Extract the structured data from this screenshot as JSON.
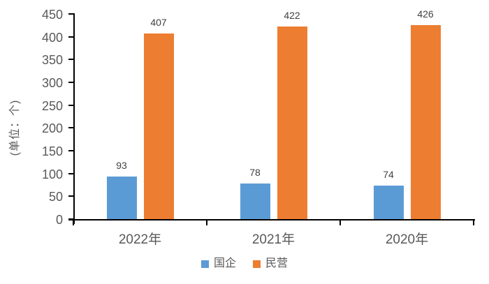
{
  "chart_data": {
    "type": "bar",
    "title": "",
    "categories": [
      "2022年",
      "2021年",
      "2020年"
    ],
    "series": [
      {
        "name": "国企",
        "color": "#5B9BD5",
        "values": [
          93,
          78,
          74
        ]
      },
      {
        "name": "民营",
        "color": "#ED7D31",
        "values": [
          407,
          422,
          426
        ]
      }
    ],
    "ylabel": "(单位：个)",
    "xlabel": "",
    "ylim": [
      0,
      450
    ],
    "ytick_step": 50,
    "yticks": [
      0,
      50,
      100,
      150,
      200,
      250,
      300,
      350,
      400,
      450
    ],
    "grid": false,
    "legend_position": "bottom",
    "data_labels": true,
    "axis_color": "#000000",
    "tick_text_color": "#595959",
    "value_label_color": "#404040",
    "background_color": "#ffffff"
  }
}
